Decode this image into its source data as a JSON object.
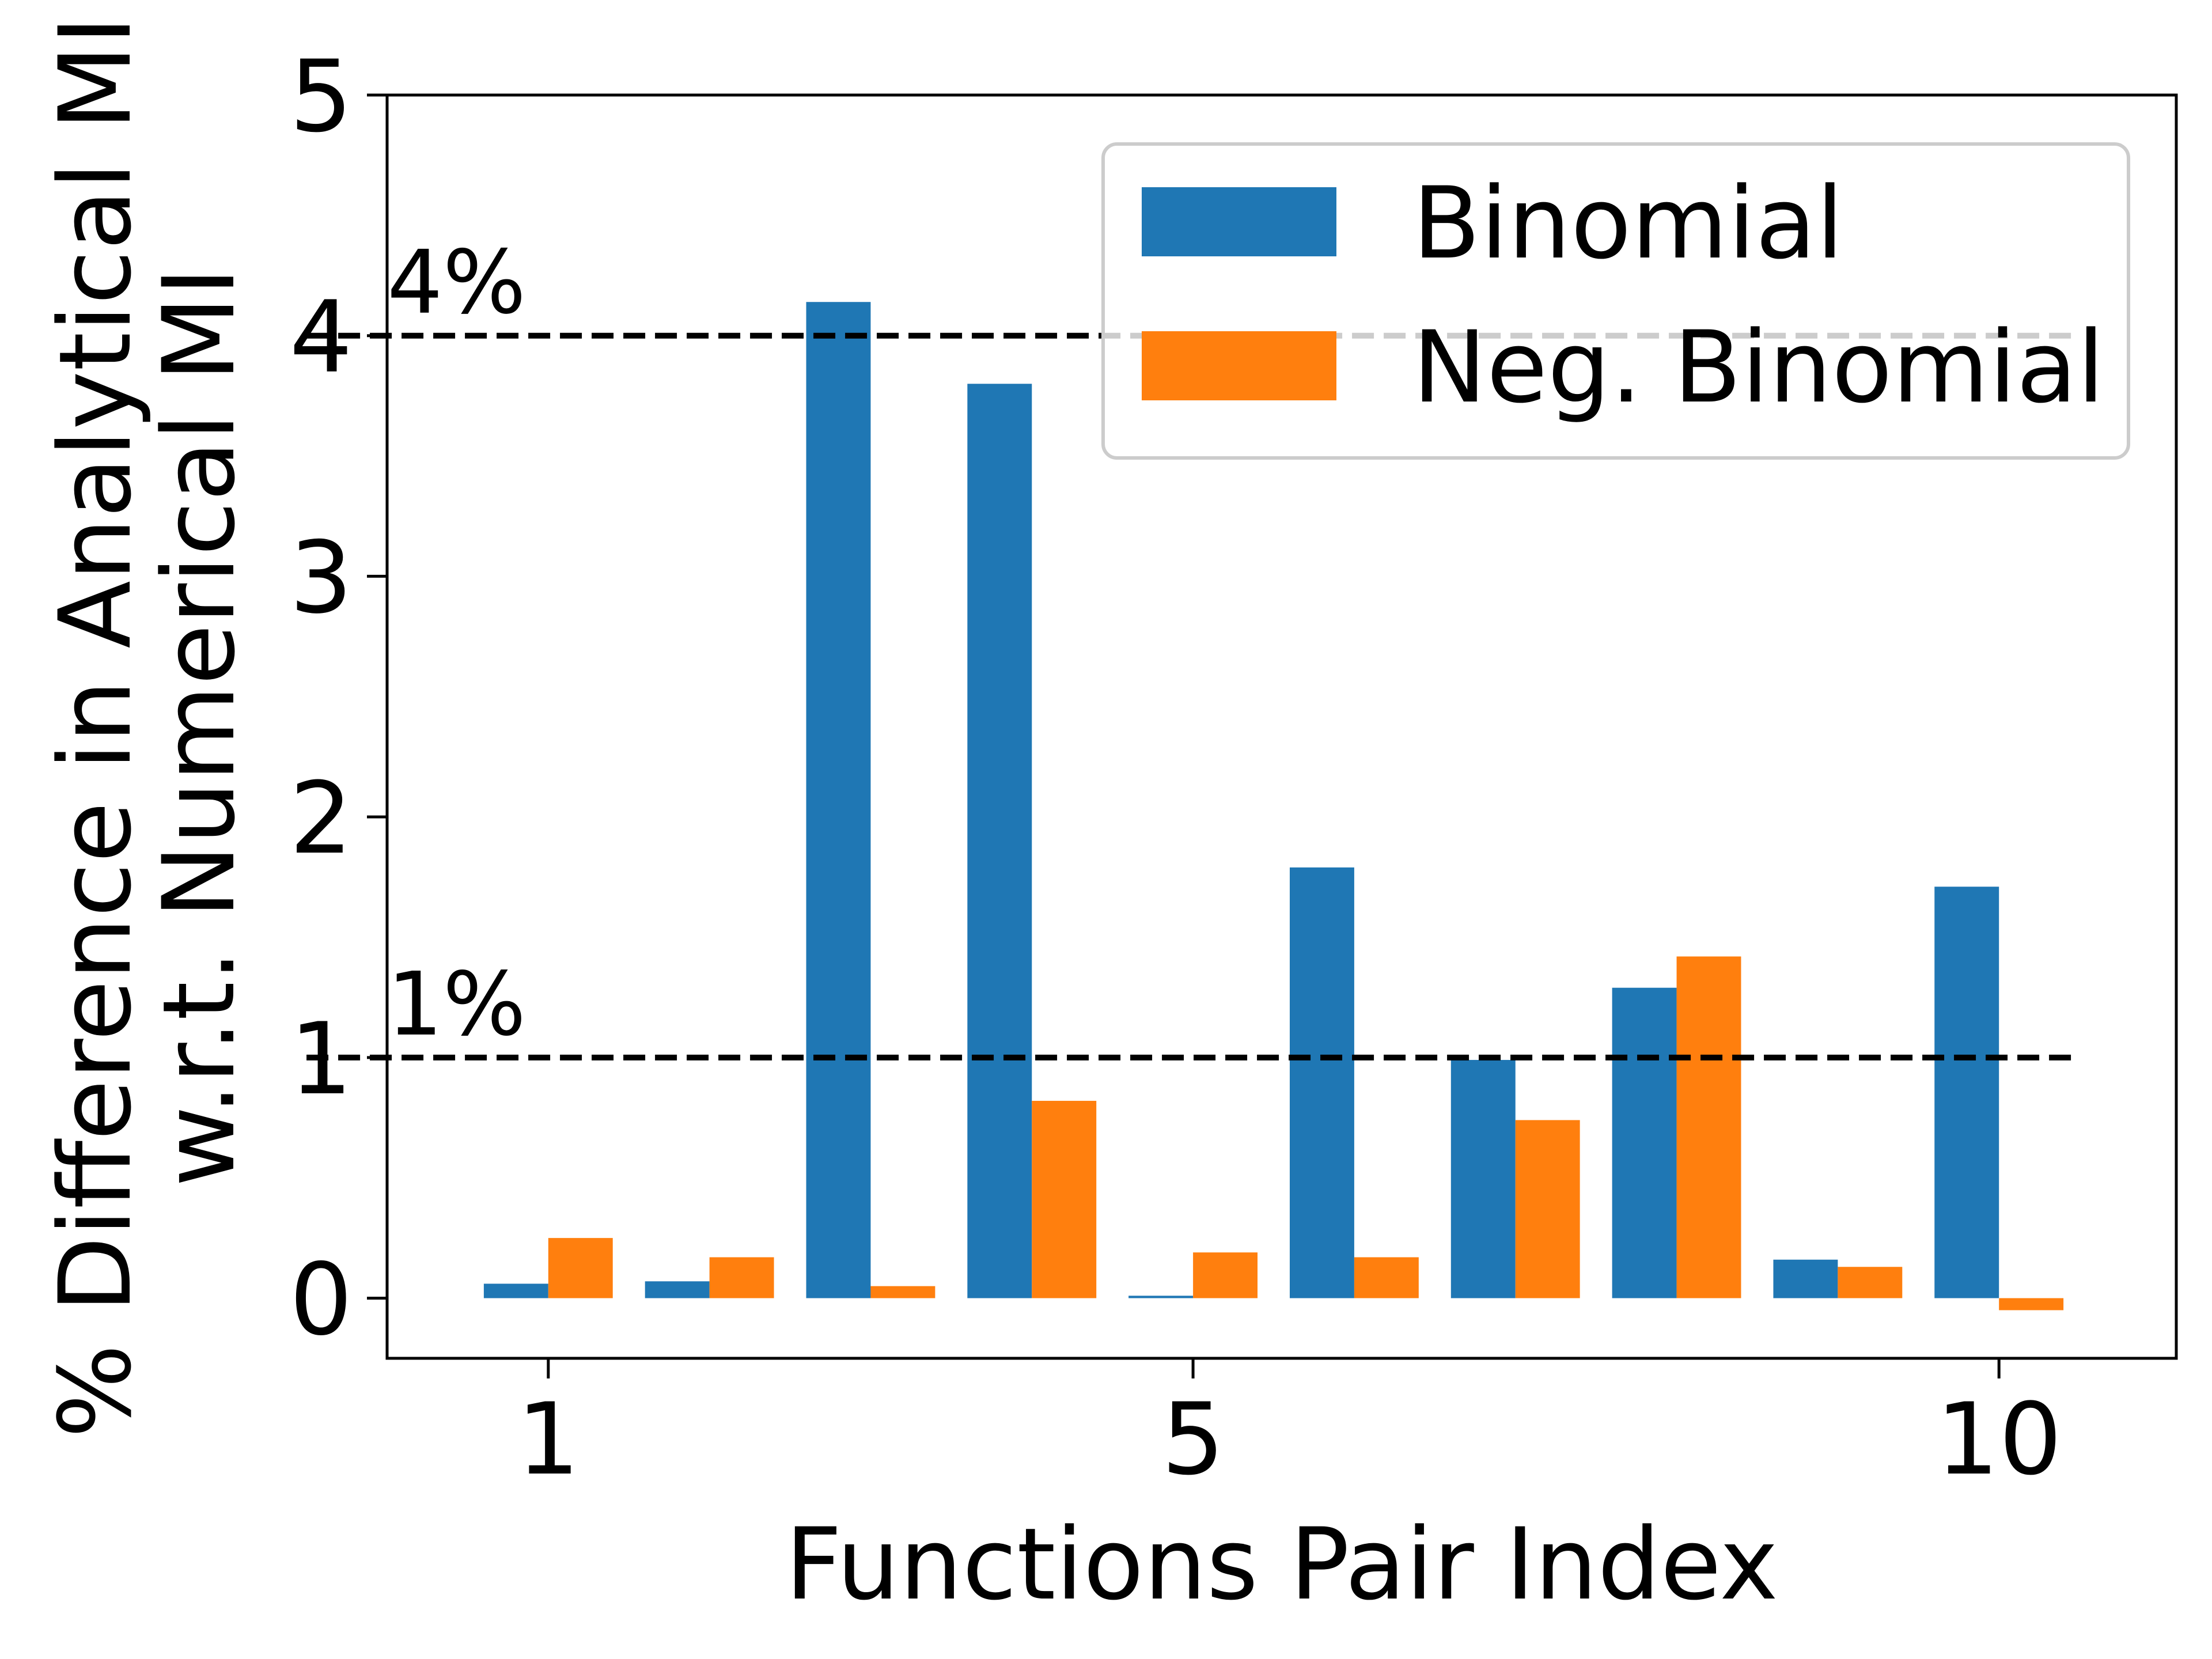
{
  "chart_data": {
    "type": "bar",
    "x": [
      1,
      2,
      3,
      4,
      5,
      6,
      7,
      8,
      9,
      10
    ],
    "xticks": [
      1,
      5,
      10
    ],
    "xlabel": "Functions Pair Index",
    "ylabel_line1": "% Difference in Analytical MI",
    "ylabel_line2": "w.r.t. Numerical MI",
    "ylim": [
      -0.25,
      5
    ],
    "yticks": [
      0,
      1,
      2,
      3,
      4,
      5
    ],
    "series": [
      {
        "name": "Binomial",
        "color": "#1f77b4",
        "values": [
          0.06,
          0.07,
          4.14,
          3.8,
          0.01,
          1.79,
          0.99,
          1.29,
          0.16,
          1.71
        ]
      },
      {
        "name": "Neg. Binomial",
        "color": "#ff7f0e",
        "values": [
          0.25,
          0.17,
          0.05,
          0.82,
          0.19,
          0.17,
          0.74,
          1.42,
          0.13,
          -0.05
        ]
      }
    ],
    "reference_lines": [
      {
        "y": 4,
        "label": "4%"
      },
      {
        "y": 1,
        "label": "1%"
      }
    ],
    "legend_position": "top-right",
    "grid": false
  }
}
